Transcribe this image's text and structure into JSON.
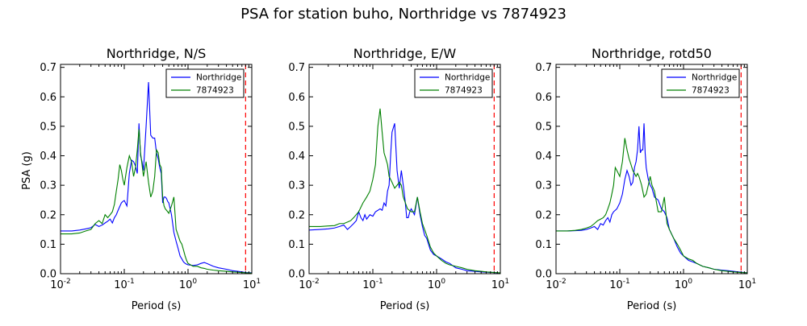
{
  "figure": {
    "suptitle": "PSA for station buho, Northridge vs 7874923",
    "ylabel": "PSA (g)",
    "xlabel": "Period (s)"
  },
  "chart_data": [
    {
      "type": "line",
      "title": "Northridge, N/S",
      "xlabel": "Period (s)",
      "ylabel": "PSA (g)",
      "xscale": "log",
      "xlim": [
        0.01,
        10
      ],
      "ylim": [
        0.0,
        0.71
      ],
      "xticks": [
        "10^-2",
        "10^-1",
        "10^0",
        "10^1"
      ],
      "yticks": [
        "0.0",
        "0.1",
        "0.2",
        "0.3",
        "0.4",
        "0.5",
        "0.6",
        "0.7"
      ],
      "legend_position": "top-right",
      "vline": {
        "x": 8,
        "color": "#ff0000",
        "style": "dashed"
      },
      "series": [
        {
          "name": "Northridge",
          "color": "#0000ff",
          "x": [
            0.01,
            0.015,
            0.02,
            0.025,
            0.03,
            0.035,
            0.04,
            0.045,
            0.05,
            0.055,
            0.06,
            0.065,
            0.07,
            0.075,
            0.08,
            0.085,
            0.09,
            0.095,
            0.1,
            0.11,
            0.12,
            0.13,
            0.14,
            0.15,
            0.16,
            0.17,
            0.18,
            0.19,
            0.2,
            0.22,
            0.24,
            0.26,
            0.28,
            0.3,
            0.32,
            0.34,
            0.36,
            0.38,
            0.4,
            0.42,
            0.44,
            0.46,
            0.48,
            0.5,
            0.55,
            0.6,
            0.65,
            0.7,
            0.75,
            0.8,
            0.85,
            0.9,
            0.95,
            1.0,
            1.2,
            1.4,
            1.6,
            1.8,
            2.0,
            2.5,
            3.0,
            4.0,
            5.0,
            6.0,
            7.0,
            8.0,
            10.0
          ],
          "y": [
            0.145,
            0.145,
            0.148,
            0.152,
            0.156,
            0.167,
            0.16,
            0.165,
            0.172,
            0.178,
            0.185,
            0.172,
            0.19,
            0.2,
            0.215,
            0.228,
            0.24,
            0.245,
            0.248,
            0.23,
            0.34,
            0.385,
            0.38,
            0.365,
            0.34,
            0.51,
            0.4,
            0.38,
            0.35,
            0.5,
            0.65,
            0.47,
            0.46,
            0.46,
            0.41,
            0.39,
            0.36,
            0.34,
            0.24,
            0.26,
            0.26,
            0.255,
            0.245,
            0.24,
            0.2,
            0.14,
            0.11,
            0.085,
            0.06,
            0.05,
            0.04,
            0.035,
            0.032,
            0.03,
            0.028,
            0.03,
            0.035,
            0.038,
            0.034,
            0.025,
            0.02,
            0.015,
            0.01,
            0.008,
            0.006,
            0.004,
            0.003
          ]
        },
        {
          "name": "7874923",
          "color": "#008000",
          "x": [
            0.01,
            0.015,
            0.02,
            0.025,
            0.03,
            0.035,
            0.04,
            0.045,
            0.05,
            0.055,
            0.06,
            0.065,
            0.07,
            0.075,
            0.08,
            0.085,
            0.09,
            0.095,
            0.1,
            0.11,
            0.12,
            0.13,
            0.14,
            0.15,
            0.16,
            0.17,
            0.18,
            0.19,
            0.2,
            0.22,
            0.24,
            0.26,
            0.28,
            0.3,
            0.32,
            0.34,
            0.36,
            0.38,
            0.4,
            0.42,
            0.44,
            0.46,
            0.48,
            0.5,
            0.55,
            0.6,
            0.65,
            0.7,
            0.75,
            0.8,
            0.85,
            0.9,
            0.95,
            1.0,
            1.2,
            1.4,
            1.6,
            1.8,
            2.0,
            2.5,
            3.0,
            4.0,
            5.0,
            6.0,
            7.0,
            8.0,
            10.0
          ],
          "y": [
            0.135,
            0.135,
            0.138,
            0.145,
            0.15,
            0.17,
            0.18,
            0.17,
            0.2,
            0.19,
            0.2,
            0.21,
            0.235,
            0.28,
            0.32,
            0.37,
            0.35,
            0.32,
            0.3,
            0.36,
            0.4,
            0.38,
            0.33,
            0.36,
            0.42,
            0.49,
            0.41,
            0.37,
            0.33,
            0.38,
            0.31,
            0.26,
            0.28,
            0.33,
            0.42,
            0.41,
            0.37,
            0.36,
            0.26,
            0.23,
            0.22,
            0.215,
            0.21,
            0.205,
            0.23,
            0.26,
            0.15,
            0.13,
            0.11,
            0.1,
            0.08,
            0.06,
            0.045,
            0.035,
            0.025,
            0.025,
            0.02,
            0.018,
            0.015,
            0.012,
            0.01,
            0.008,
            0.006,
            0.005,
            0.004,
            0.003,
            0.002
          ]
        }
      ]
    },
    {
      "type": "line",
      "title": "Northridge, E/W",
      "xlabel": "Period (s)",
      "xscale": "log",
      "xlim": [
        0.01,
        10
      ],
      "ylim": [
        0.0,
        0.71
      ],
      "xticks": [
        "10^-2",
        "10^-1",
        "10^0",
        "10^1"
      ],
      "yticks": [
        "0.0",
        "0.1",
        "0.2",
        "0.3",
        "0.4",
        "0.5",
        "0.6",
        "0.7"
      ],
      "legend_position": "top-right",
      "vline": {
        "x": 8,
        "color": "#ff0000",
        "style": "dashed"
      },
      "series": [
        {
          "name": "Northridge",
          "color": "#0000ff",
          "x": [
            0.01,
            0.015,
            0.02,
            0.025,
            0.03,
            0.035,
            0.04,
            0.045,
            0.05,
            0.055,
            0.06,
            0.065,
            0.07,
            0.075,
            0.08,
            0.09,
            0.1,
            0.11,
            0.12,
            0.13,
            0.14,
            0.15,
            0.16,
            0.17,
            0.18,
            0.19,
            0.2,
            0.22,
            0.24,
            0.26,
            0.28,
            0.3,
            0.32,
            0.34,
            0.36,
            0.38,
            0.4,
            0.45,
            0.5,
            0.55,
            0.6,
            0.65,
            0.7,
            0.8,
            0.9,
            1.0,
            1.2,
            1.4,
            1.6,
            2.0,
            2.5,
            3.0,
            4.0,
            5.0,
            6.0,
            8.0,
            10.0
          ],
          "y": [
            0.148,
            0.15,
            0.152,
            0.155,
            0.16,
            0.165,
            0.15,
            0.16,
            0.17,
            0.18,
            0.21,
            0.19,
            0.18,
            0.2,
            0.185,
            0.2,
            0.195,
            0.21,
            0.215,
            0.22,
            0.215,
            0.24,
            0.23,
            0.28,
            0.3,
            0.4,
            0.48,
            0.51,
            0.35,
            0.29,
            0.35,
            0.3,
            0.25,
            0.19,
            0.19,
            0.21,
            0.22,
            0.2,
            0.26,
            0.2,
            0.16,
            0.13,
            0.12,
            0.08,
            0.065,
            0.06,
            0.05,
            0.04,
            0.035,
            0.02,
            0.015,
            0.01,
            0.008,
            0.006,
            0.005,
            0.004,
            0.002
          ]
        },
        {
          "name": "7874923",
          "color": "#008000",
          "x": [
            0.01,
            0.015,
            0.02,
            0.025,
            0.03,
            0.035,
            0.04,
            0.045,
            0.05,
            0.06,
            0.07,
            0.08,
            0.09,
            0.1,
            0.11,
            0.12,
            0.13,
            0.14,
            0.15,
            0.16,
            0.17,
            0.18,
            0.19,
            0.2,
            0.22,
            0.24,
            0.26,
            0.28,
            0.3,
            0.35,
            0.4,
            0.45,
            0.5,
            0.55,
            0.6,
            0.7,
            0.8,
            0.9,
            1.0,
            1.2,
            1.4,
            1.6,
            2.0,
            2.5,
            3.0,
            4.0,
            5.0,
            6.0,
            8.0,
            10.0
          ],
          "y": [
            0.16,
            0.16,
            0.162,
            0.163,
            0.17,
            0.17,
            0.175,
            0.18,
            0.19,
            0.21,
            0.24,
            0.26,
            0.28,
            0.32,
            0.37,
            0.5,
            0.56,
            0.48,
            0.41,
            0.39,
            0.37,
            0.33,
            0.32,
            0.31,
            0.29,
            0.3,
            0.31,
            0.3,
            0.26,
            0.22,
            0.21,
            0.21,
            0.26,
            0.21,
            0.17,
            0.13,
            0.09,
            0.07,
            0.06,
            0.045,
            0.035,
            0.03,
            0.025,
            0.02,
            0.015,
            0.01,
            0.008,
            0.006,
            0.004,
            0.003
          ]
        }
      ]
    },
    {
      "type": "line",
      "title": "Northridge, rotd50",
      "xlabel": "Period (s)",
      "xscale": "log",
      "xlim": [
        0.01,
        10
      ],
      "ylim": [
        0.0,
        0.71
      ],
      "xticks": [
        "10^-2",
        "10^-1",
        "10^0",
        "10^1"
      ],
      "yticks": [
        "0.0",
        "0.1",
        "0.2",
        "0.3",
        "0.4",
        "0.5",
        "0.6",
        "0.7"
      ],
      "legend_position": "top-right",
      "vline": {
        "x": 8,
        "color": "#ff0000",
        "style": "dashed"
      },
      "series": [
        {
          "name": "Northridge",
          "color": "#0000ff",
          "x": [
            0.01,
            0.015,
            0.02,
            0.025,
            0.03,
            0.035,
            0.04,
            0.045,
            0.05,
            0.055,
            0.06,
            0.065,
            0.07,
            0.075,
            0.08,
            0.09,
            0.1,
            0.11,
            0.12,
            0.13,
            0.14,
            0.15,
            0.16,
            0.17,
            0.18,
            0.19,
            0.2,
            0.21,
            0.22,
            0.23,
            0.24,
            0.25,
            0.26,
            0.28,
            0.3,
            0.32,
            0.35,
            0.4,
            0.45,
            0.5,
            0.55,
            0.6,
            0.7,
            0.8,
            0.9,
            1.0,
            1.2,
            1.4,
            1.6,
            2.0,
            2.5,
            3.0,
            4.0,
            5.0,
            6.0,
            8.0,
            10.0
          ],
          "y": [
            0.145,
            0.145,
            0.146,
            0.147,
            0.15,
            0.155,
            0.16,
            0.15,
            0.17,
            0.165,
            0.18,
            0.19,
            0.175,
            0.2,
            0.21,
            0.22,
            0.24,
            0.27,
            0.32,
            0.35,
            0.33,
            0.3,
            0.31,
            0.36,
            0.38,
            0.42,
            0.5,
            0.41,
            0.42,
            0.42,
            0.51,
            0.41,
            0.36,
            0.32,
            0.3,
            0.29,
            0.26,
            0.25,
            0.22,
            0.21,
            0.19,
            0.15,
            0.12,
            0.09,
            0.07,
            0.06,
            0.045,
            0.04,
            0.035,
            0.025,
            0.02,
            0.015,
            0.012,
            0.01,
            0.008,
            0.005,
            0.003
          ]
        },
        {
          "name": "7874923",
          "color": "#008000",
          "x": [
            0.01,
            0.015,
            0.02,
            0.025,
            0.03,
            0.035,
            0.04,
            0.045,
            0.05,
            0.055,
            0.06,
            0.065,
            0.07,
            0.075,
            0.08,
            0.085,
            0.09,
            0.1,
            0.11,
            0.12,
            0.13,
            0.14,
            0.15,
            0.16,
            0.17,
            0.18,
            0.19,
            0.2,
            0.22,
            0.24,
            0.26,
            0.28,
            0.3,
            0.32,
            0.35,
            0.4,
            0.45,
            0.5,
            0.55,
            0.6,
            0.7,
            0.8,
            0.9,
            1.0,
            1.2,
            1.4,
            1.6,
            2.0,
            2.5,
            3.0,
            4.0,
            5.0,
            6.0,
            8.0,
            10.0
          ],
          "y": [
            0.145,
            0.145,
            0.147,
            0.15,
            0.155,
            0.16,
            0.17,
            0.18,
            0.185,
            0.19,
            0.2,
            0.22,
            0.24,
            0.27,
            0.3,
            0.36,
            0.35,
            0.33,
            0.38,
            0.46,
            0.42,
            0.39,
            0.37,
            0.35,
            0.34,
            0.33,
            0.34,
            0.33,
            0.3,
            0.26,
            0.27,
            0.3,
            0.33,
            0.3,
            0.28,
            0.21,
            0.21,
            0.26,
            0.17,
            0.15,
            0.12,
            0.1,
            0.08,
            0.06,
            0.05,
            0.045,
            0.035,
            0.025,
            0.02,
            0.015,
            0.01,
            0.008,
            0.006,
            0.004,
            0.003
          ]
        }
      ]
    }
  ]
}
